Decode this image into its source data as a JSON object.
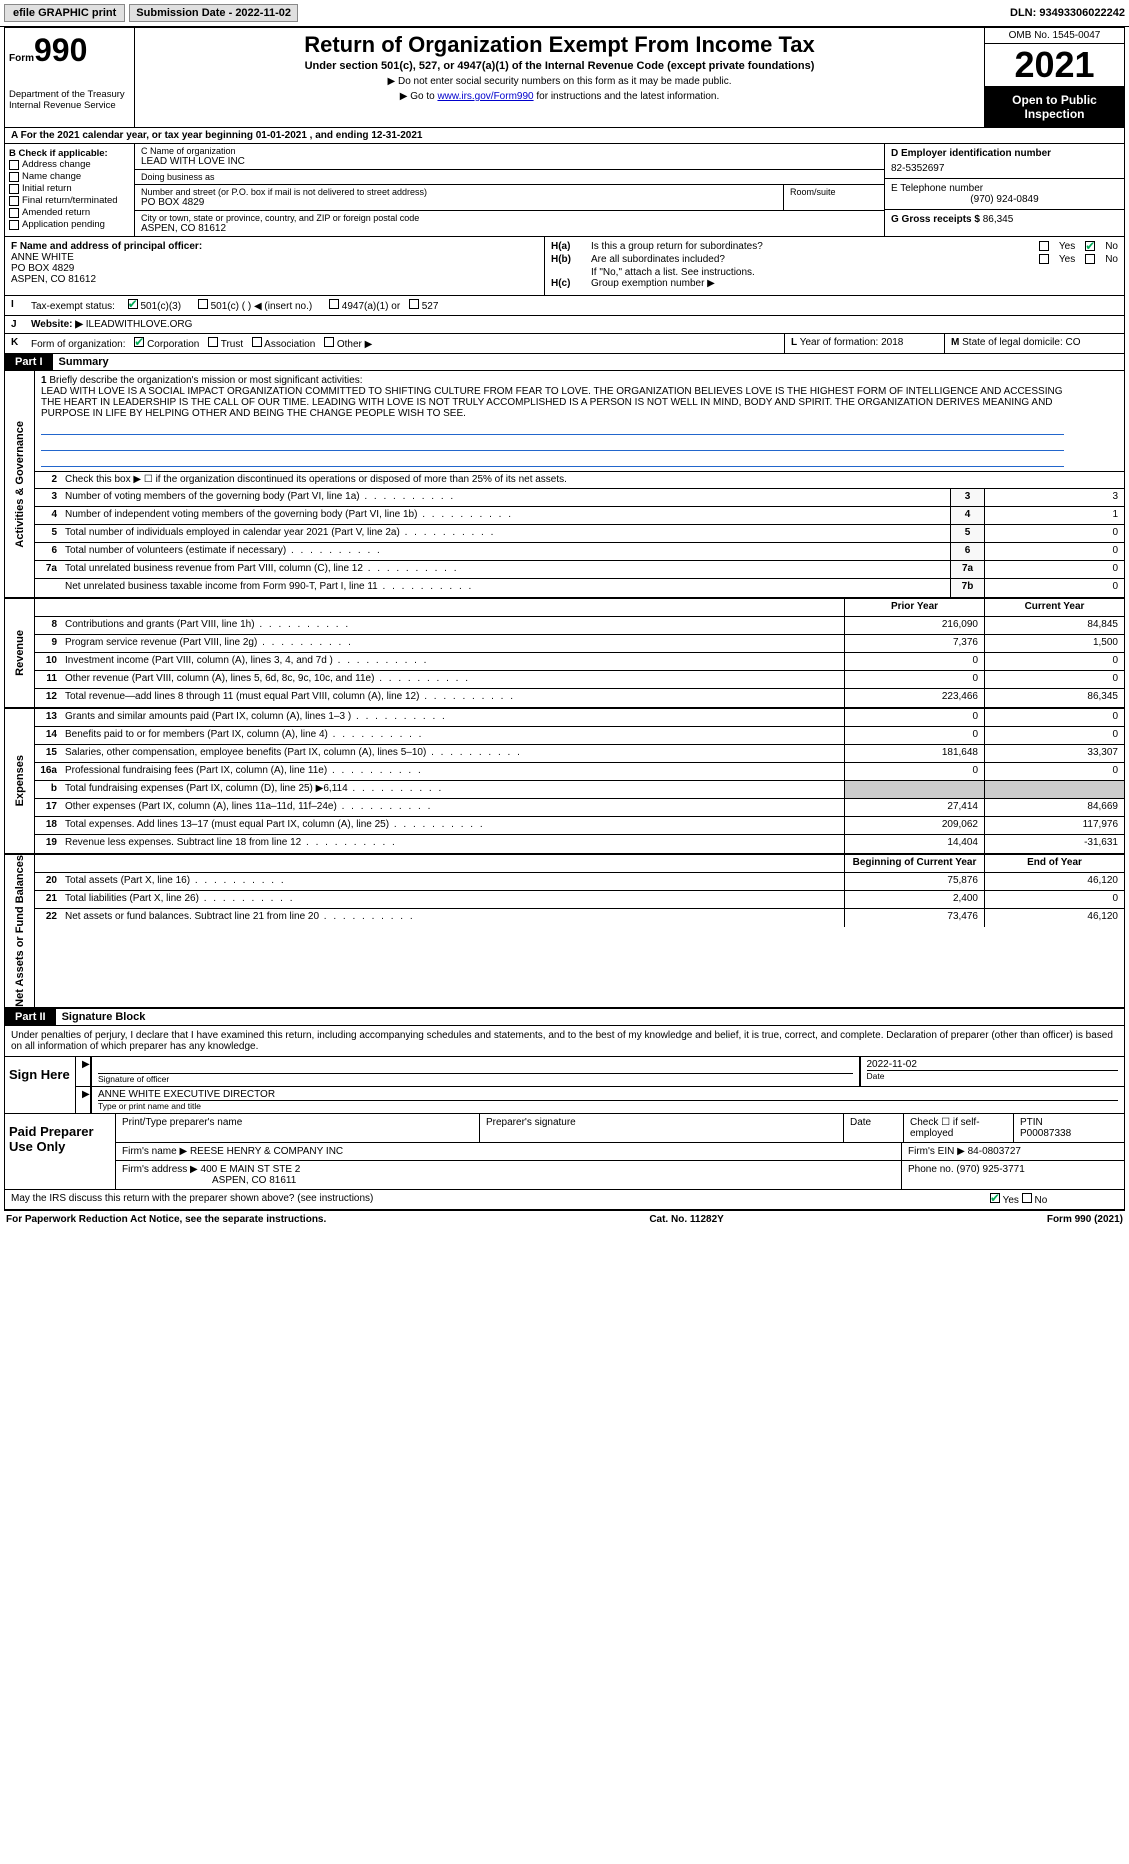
{
  "topbar": {
    "efile": "efile GRAPHIC print",
    "submission": "Submission Date - 2022-11-02",
    "dln": "DLN: 93493306022242"
  },
  "header": {
    "form_word": "Form",
    "form_num": "990",
    "dept": "Department of the Treasury\nInternal Revenue Service",
    "title": "Return of Organization Exempt From Income Tax",
    "subtitle": "Under section 501(c), 527, or 4947(a)(1) of the Internal Revenue Code (except private foundations)",
    "note1": "▶ Do not enter social security numbers on this form as it may be made public.",
    "note2_pre": "▶ Go to ",
    "note2_link": "www.irs.gov/Form990",
    "note2_post": " for instructions and the latest information.",
    "omb": "OMB No. 1545-0047",
    "year": "2021",
    "open": "Open to Public Inspection"
  },
  "row_a": "A   For the 2021 calendar year, or tax year beginning 01-01-2021     , and ending 12-31-2021",
  "col_b": {
    "title": "B Check if applicable:",
    "items": [
      "Address change",
      "Name change",
      "Initial return",
      "Final return/terminated",
      "Amended return",
      "Application pending"
    ]
  },
  "col_c": {
    "name_lbl": "C Name of organization",
    "name": "LEAD WITH LOVE INC",
    "dba_lbl": "Doing business as",
    "dba": "",
    "street_lbl": "Number and street (or P.O. box if mail is not delivered to street address)",
    "street": "PO BOX 4829",
    "room_lbl": "Room/suite",
    "city_lbl": "City or town, state or province, country, and ZIP or foreign postal code",
    "city": "ASPEN, CO  81612"
  },
  "col_d": {
    "ein_lbl": "D Employer identification number",
    "ein": "82-5352697",
    "tel_lbl": "E Telephone number",
    "tel": "(970) 924-0849",
    "gross_lbl": "G Gross receipts $",
    "gross": "86,345"
  },
  "col_f": {
    "lbl": "F  Name and address of principal officer:",
    "name": "ANNE WHITE",
    "addr1": "PO BOX 4829",
    "addr2": "ASPEN, CO  81612"
  },
  "col_h": {
    "ha_lbl": "H(a)",
    "ha_txt": "Is this a group return for subordinates?",
    "hb_lbl": "H(b)",
    "hb_txt": "Are all subordinates included?",
    "hb_note": "If \"No,\" attach a list. See instructions.",
    "hc_lbl": "H(c)",
    "hc_txt": "Group exemption number ▶",
    "yes": "Yes",
    "no": "No"
  },
  "row_i": {
    "lbl": "I",
    "txt": "Tax-exempt status:",
    "opts": [
      "501(c)(3)",
      "501(c) (  ) ◀ (insert no.)",
      "4947(a)(1) or",
      "527"
    ]
  },
  "row_j": {
    "lbl": "J",
    "txt": "Website: ▶",
    "val": "ILEADWITHLOVE.ORG"
  },
  "row_k": {
    "lbl": "K",
    "txt": "Form of organization:",
    "opts": [
      "Corporation",
      "Trust",
      "Association",
      "Other ▶"
    ]
  },
  "row_l": {
    "lbl": "L",
    "txt": "Year of formation:",
    "val": "2018"
  },
  "row_m": {
    "lbl": "M",
    "txt": "State of legal domicile:",
    "val": "CO"
  },
  "part1": {
    "hdr": "Part I",
    "title": "Summary"
  },
  "summary": {
    "line1_lbl": "1",
    "line1_txt": "Briefly describe the organization's mission or most significant activities:",
    "mission": "LEAD WITH LOVE IS A SOCIAL IMPACT ORGANIZATION COMMITTED TO SHIFTING CULTURE FROM FEAR TO LOVE. THE ORGANIZATION BELIEVES LOVE IS THE HIGHEST FORM OF INTELLIGENCE AND ACCESSING THE HEART IN LEADERSHIP IS THE CALL OF OUR TIME. LEADING WITH LOVE IS NOT TRULY ACCOMPLISHED IS A PERSON IS NOT WELL IN MIND, BODY AND SPIRIT. THE ORGANIZATION DERIVES MEANING AND PURPOSE IN LIFE BY HELPING OTHER AND BEING THE CHANGE PEOPLE WISH TO SEE.",
    "line2": "Check this box ▶ ☐  if the organization discontinued its operations or disposed of more than 25% of its net assets.",
    "rows_gov": [
      {
        "n": "3",
        "d": "Number of voting members of the governing body (Part VI, line 1a)",
        "c": "3",
        "v": "3"
      },
      {
        "n": "4",
        "d": "Number of independent voting members of the governing body (Part VI, line 1b)",
        "c": "4",
        "v": "1"
      },
      {
        "n": "5",
        "d": "Total number of individuals employed in calendar year 2021 (Part V, line 2a)",
        "c": "5",
        "v": "0"
      },
      {
        "n": "6",
        "d": "Total number of volunteers (estimate if necessary)",
        "c": "6",
        "v": "0"
      },
      {
        "n": "7a",
        "d": "Total unrelated business revenue from Part VIII, column (C), line 12",
        "c": "7a",
        "v": "0"
      },
      {
        "n": "",
        "d": "Net unrelated business taxable income from Form 990-T, Part I, line 11",
        "c": "7b",
        "v": "0"
      }
    ],
    "hdr_prior": "Prior Year",
    "hdr_curr": "Current Year",
    "rows_rev": [
      {
        "n": "8",
        "d": "Contributions and grants (Part VIII, line 1h)",
        "p": "216,090",
        "c": "84,845"
      },
      {
        "n": "9",
        "d": "Program service revenue (Part VIII, line 2g)",
        "p": "7,376",
        "c": "1,500"
      },
      {
        "n": "10",
        "d": "Investment income (Part VIII, column (A), lines 3, 4, and 7d )",
        "p": "0",
        "c": "0"
      },
      {
        "n": "11",
        "d": "Other revenue (Part VIII, column (A), lines 5, 6d, 8c, 9c, 10c, and 11e)",
        "p": "0",
        "c": "0"
      },
      {
        "n": "12",
        "d": "Total revenue—add lines 8 through 11 (must equal Part VIII, column (A), line 12)",
        "p": "223,466",
        "c": "86,345"
      }
    ],
    "rows_exp": [
      {
        "n": "13",
        "d": "Grants and similar amounts paid (Part IX, column (A), lines 1–3 )",
        "p": "0",
        "c": "0"
      },
      {
        "n": "14",
        "d": "Benefits paid to or for members (Part IX, column (A), line 4)",
        "p": "0",
        "c": "0"
      },
      {
        "n": "15",
        "d": "Salaries, other compensation, employee benefits (Part IX, column (A), lines 5–10)",
        "p": "181,648",
        "c": "33,307"
      },
      {
        "n": "16a",
        "d": "Professional fundraising fees (Part IX, column (A), line 11e)",
        "p": "0",
        "c": "0"
      },
      {
        "n": "b",
        "d": "Total fundraising expenses (Part IX, column (D), line 25) ▶6,114",
        "p": "shade",
        "c": "shade"
      },
      {
        "n": "17",
        "d": "Other expenses (Part IX, column (A), lines 11a–11d, 11f–24e)",
        "p": "27,414",
        "c": "84,669"
      },
      {
        "n": "18",
        "d": "Total expenses. Add lines 13–17 (must equal Part IX, column (A), line 25)",
        "p": "209,062",
        "c": "117,976"
      },
      {
        "n": "19",
        "d": "Revenue less expenses. Subtract line 18 from line 12",
        "p": "14,404",
        "c": "-31,631"
      }
    ],
    "hdr_beg": "Beginning of Current Year",
    "hdr_end": "End of Year",
    "rows_net": [
      {
        "n": "20",
        "d": "Total assets (Part X, line 16)",
        "p": "75,876",
        "c": "46,120"
      },
      {
        "n": "21",
        "d": "Total liabilities (Part X, line 26)",
        "p": "2,400",
        "c": "0"
      },
      {
        "n": "22",
        "d": "Net assets or fund balances. Subtract line 21 from line 20",
        "p": "73,476",
        "c": "46,120"
      }
    ]
  },
  "side_labels": {
    "gov": "Activities & Governance",
    "rev": "Revenue",
    "exp": "Expenses",
    "net": "Net Assets or Fund Balances"
  },
  "part2": {
    "hdr": "Part II",
    "title": "Signature Block"
  },
  "sig_decl": "Under penalties of perjury, I declare that I have examined this return, including accompanying schedules and statements, and to the best of my knowledge and belief, it is true, correct, and complete. Declaration of preparer (other than officer) is based on all information of which preparer has any knowledge.",
  "sign_here": "Sign Here",
  "sig": {
    "sig_lbl": "Signature of officer",
    "date_lbl": "Date",
    "date": "2022-11-02",
    "name": "ANNE WHITE  EXECUTIVE DIRECTOR",
    "name_lbl": "Type or print name and title"
  },
  "paid": {
    "title": "Paid Preparer Use Only",
    "h1": "Print/Type preparer's name",
    "h2": "Preparer's signature",
    "h3": "Date",
    "h4": "Check ☐ if self-employed",
    "h5": "PTIN",
    "ptin": "P00087338",
    "firm_lbl": "Firm's name    ▶",
    "firm": "REESE HENRY & COMPANY INC",
    "ein_lbl": "Firm's EIN ▶",
    "ein": "84-0803727",
    "addr_lbl": "Firm's address ▶",
    "addr": "400 E MAIN ST STE 2",
    "addr2": "ASPEN, CO  81611",
    "phone_lbl": "Phone no.",
    "phone": "(970) 925-3771"
  },
  "discuss": "May the IRS discuss this return with the preparer shown above? (see instructions)",
  "footer": {
    "left": "For Paperwork Reduction Act Notice, see the separate instructions.",
    "mid": "Cat. No. 11282Y",
    "right": "Form 990 (2021)"
  }
}
